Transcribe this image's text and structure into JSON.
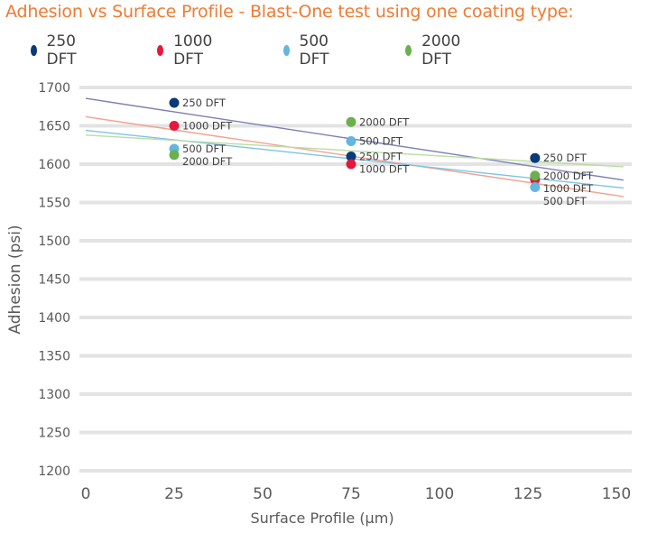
{
  "chart_data": {
    "type": "scatter",
    "title": "Adhesion vs Surface Profile - Blast-One test using one coating type:",
    "xlabel": "Surface Profile (µm)",
    "ylabel": "Adhesion (psi)",
    "xlim": [
      0,
      150
    ],
    "ylim": [
      1200,
      1700
    ],
    "xticks": [
      0,
      25,
      50,
      75,
      100,
      125,
      150
    ],
    "yticks": [
      1200,
      1250,
      1300,
      1350,
      1400,
      1450,
      1500,
      1550,
      1600,
      1650,
      1700
    ],
    "grid": true,
    "legend_position": "top",
    "trendlines": "linear",
    "series": [
      {
        "name": "250 DFT",
        "color": "#0b3a78",
        "trend_color": "#7b7fb5",
        "x": [
          25,
          75,
          127
        ],
        "y": [
          1680,
          1610,
          1608
        ]
      },
      {
        "name": "1000 DFT",
        "color": "#e3183c",
        "trend_color": "#f2a28f",
        "x": [
          25,
          75,
          127
        ],
        "y": [
          1650,
          1600,
          1580
        ]
      },
      {
        "name": "500 DFT",
        "color": "#62b6df",
        "trend_color": "#7cc3e6",
        "x": [
          25,
          75,
          127
        ],
        "y": [
          1620,
          1630,
          1570
        ]
      },
      {
        "name": "2000 DFT",
        "color": "#6ab04c",
        "trend_color": "#b9dca3",
        "x": [
          25,
          75,
          127
        ],
        "y": [
          1612,
          1655,
          1585
        ]
      }
    ]
  }
}
